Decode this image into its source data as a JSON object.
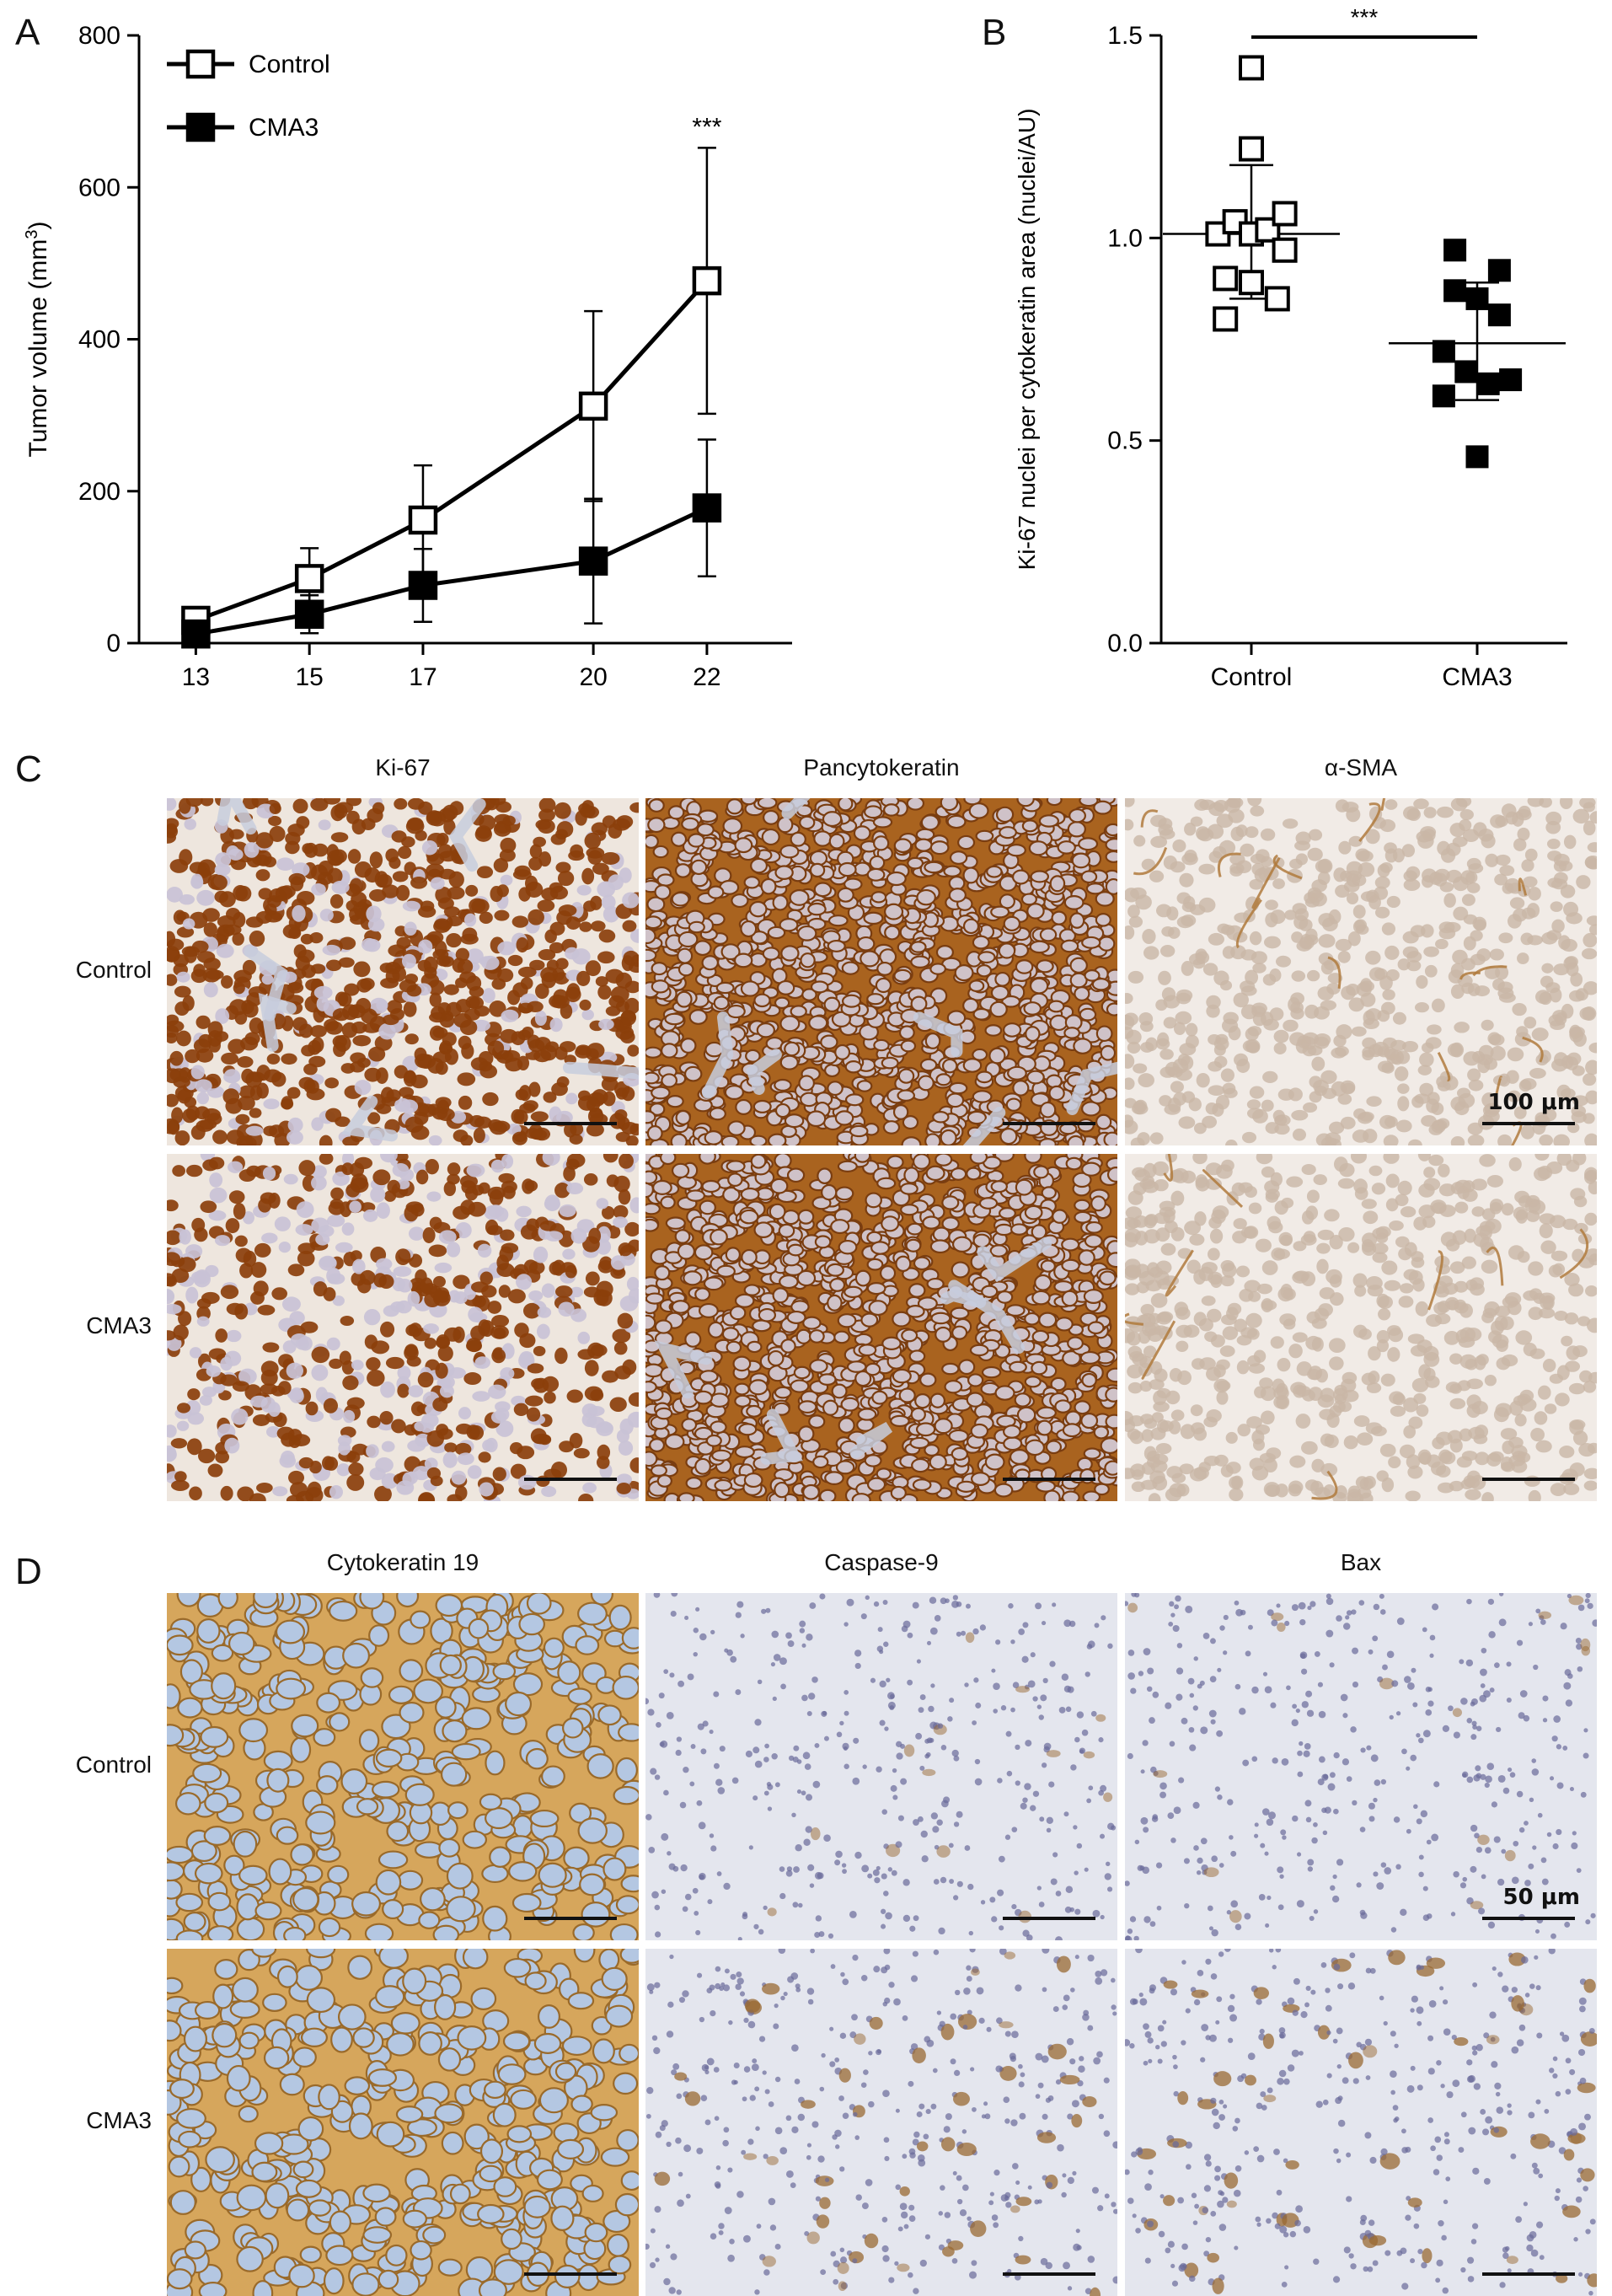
{
  "panels": {
    "a": {
      "letter": "A"
    },
    "b": {
      "letter": "B"
    },
    "c": {
      "letter": "C"
    },
    "d": {
      "letter": "D"
    }
  },
  "chart_data": [
    {
      "type": "line",
      "panel": "A",
      "ylabel": "Tumor volume (mm",
      "ylabel_sup": "3",
      "ylabel_end": ")",
      "xlabel": "",
      "x": [
        13,
        15,
        17,
        20,
        22
      ],
      "x_ticks": [
        "13",
        "15",
        "17",
        "20",
        "22"
      ],
      "y_ticks": [
        "0",
        "200",
        "400",
        "600",
        "800"
      ],
      "ylim": [
        0,
        800
      ],
      "legend_position": "top-left",
      "series": [
        {
          "name": "Control",
          "marker": "open-square",
          "values": [
            30,
            85,
            162,
            312,
            477
          ],
          "errors": [
            8,
            40,
            72,
            125,
            175
          ]
        },
        {
          "name": "CMA3",
          "marker": "filled-square",
          "values": [
            12,
            38,
            76,
            108,
            178
          ],
          "errors": [
            5,
            25,
            48,
            82,
            90
          ]
        }
      ],
      "annotation": {
        "text": "***",
        "x": 22,
        "y": 655
      }
    },
    {
      "type": "scatter",
      "panel": "B",
      "ylabel": "Ki-67 nuclei per cytokeratin area (nuclei/AU)",
      "xlabel": "",
      "categories": [
        "Control",
        "CMA3"
      ],
      "y_ticks": [
        "0.0",
        "0.5",
        "1.0",
        "1.5"
      ],
      "ylim": [
        0,
        1.5
      ],
      "groups": [
        {
          "category": "Control",
          "marker": "open-square",
          "mean": 1.01,
          "sd_low": 0.85,
          "sd_high": 1.18,
          "points": [
            {
              "offset": -0.45,
              "y": 1.01
            },
            {
              "offset": -0.22,
              "y": 1.04
            },
            {
              "offset": 0.0,
              "y": 1.42
            },
            {
              "offset": 0.0,
              "y": 1.22
            },
            {
              "offset": 0.0,
              "y": 1.01
            },
            {
              "offset": 0.0,
              "y": 0.89
            },
            {
              "offset": -0.35,
              "y": 0.9
            },
            {
              "offset": -0.35,
              "y": 0.8
            },
            {
              "offset": 0.22,
              "y": 1.02
            },
            {
              "offset": 0.45,
              "y": 1.06
            },
            {
              "offset": 0.45,
              "y": 0.97
            },
            {
              "offset": 0.35,
              "y": 0.85
            }
          ]
        },
        {
          "category": "CMA3",
          "marker": "filled-square",
          "mean": 0.74,
          "sd_low": 0.6,
          "sd_high": 0.89,
          "points": [
            {
              "offset": -0.3,
              "y": 0.97
            },
            {
              "offset": -0.3,
              "y": 0.87
            },
            {
              "offset": 0.0,
              "y": 0.85
            },
            {
              "offset": 0.3,
              "y": 0.92
            },
            {
              "offset": 0.3,
              "y": 0.81
            },
            {
              "offset": -0.45,
              "y": 0.72
            },
            {
              "offset": -0.45,
              "y": 0.61
            },
            {
              "offset": -0.15,
              "y": 0.67
            },
            {
              "offset": 0.15,
              "y": 0.64
            },
            {
              "offset": 0.45,
              "y": 0.65
            },
            {
              "offset": 0.0,
              "y": 0.46
            }
          ]
        }
      ],
      "significance": {
        "text": "***"
      }
    }
  ],
  "figure_c": {
    "columns": [
      "Ki-67",
      "Pancytokeratin",
      "α-SMA"
    ],
    "rows": [
      "Control",
      "CMA3"
    ],
    "scalebar_label": "100 μm"
  },
  "figure_d": {
    "columns": [
      "Cytokeratin 19",
      "Caspase-9",
      "Bax"
    ],
    "rows": [
      "Control",
      "CMA3"
    ],
    "scalebar_label": "50 μm"
  },
  "colors": {
    "ki67_bg": "#eee6de",
    "ki67_nuclei": "#8b3f0b",
    "pancyto": "#a9631f",
    "pancyto_dark": "#7a3d10",
    "sma_bg": "#f1ebe6",
    "sma_cells": "#c9b7a6",
    "ck19": "#d6a65c",
    "ck19_cells": "#b4c7e2",
    "casp_bg": "#e4e6ee",
    "casp_dots": "#6a6a9a",
    "brown_spots": "#9a6a33"
  }
}
